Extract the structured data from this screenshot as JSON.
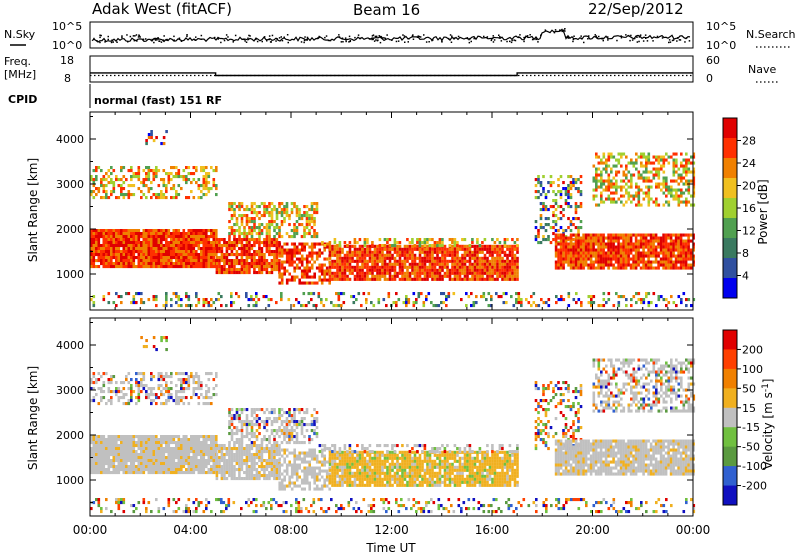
{
  "header": {
    "station": "Adak West (fitACF)",
    "beam": "Beam 16",
    "date": "22/Sep/2012"
  },
  "panels": {
    "noise": {
      "left_label": "N.Sky",
      "right_label": "N.Search",
      "left_ticks": [
        "10^5",
        "10^0"
      ],
      "right_ticks": [
        "10^5",
        "10^0"
      ]
    },
    "freq": {
      "left_label": "Freq.",
      "left_unit": "[MHz]",
      "left_ticks": [
        "18",
        "8"
      ],
      "right_label": "Nave",
      "right_ticks": [
        "60",
        "0"
      ]
    },
    "cpid": {
      "label": "CPID",
      "text": "normal (fast) 151 RF"
    }
  },
  "chart_data": [
    {
      "type": "line",
      "title": "Freq.",
      "series": [
        {
          "name": "Freq. [MHz]",
          "x_hours": [
            0,
            5,
            5,
            17,
            17,
            24
          ],
          "values": [
            11.5,
            11.5,
            10.5,
            10.5,
            11.5,
            11.5
          ]
        },
        {
          "name": "Nave",
          "x_hours": [
            0,
            24
          ],
          "values": [
            15,
            15
          ]
        }
      ],
      "ylim_left": [
        8,
        18
      ],
      "ylim_right": [
        0,
        60
      ]
    },
    {
      "type": "heatmap",
      "quantity": "Power",
      "ylabel": "Slant Range [km]",
      "xlabel": "Time UT",
      "y_ticks": [
        "1000",
        "2000",
        "3000",
        "4000"
      ],
      "ylim": [
        200,
        4600
      ],
      "colorbar_label": "Power [dB]",
      "colorbar_ticks": [
        "4",
        "8",
        "12",
        "16",
        "20",
        "24",
        "28"
      ],
      "colorbar_range": [
        0,
        32
      ],
      "colors": [
        "#0000ee",
        "#3050a0",
        "#3a7a60",
        "#50a050",
        "#a0d030",
        "#f0c020",
        "#f08000",
        "#ff3000",
        "#e00000"
      ]
    },
    {
      "type": "heatmap",
      "quantity": "Velocity",
      "ylabel": "Slant Range [km]",
      "xlabel": "Time UT",
      "y_ticks": [
        "1000",
        "2000",
        "3000",
        "4000"
      ],
      "ylim": [
        200,
        4600
      ],
      "colorbar_label": "Velocity [m s^-1]",
      "colorbar_ticks": [
        "200",
        "100",
        "50",
        "15",
        "-15",
        "-50",
        "-100",
        "-200"
      ],
      "colorbar_range": [
        -250,
        250
      ],
      "colors": [
        "#1010c0",
        "#3060d0",
        "#5a9a40",
        "#70c040",
        "#c0c0c0",
        "#f0b020",
        "#f08000",
        "#ff4000",
        "#e00000"
      ]
    }
  ],
  "x_axis": {
    "ticks": [
      "00:00",
      "04:00",
      "08:00",
      "12:00",
      "16:00",
      "20:00",
      "00:00"
    ],
    "label": "Time UT"
  }
}
